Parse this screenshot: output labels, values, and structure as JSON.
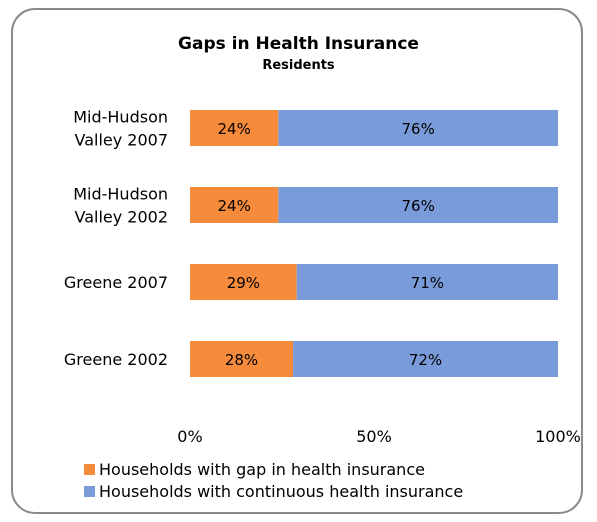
{
  "chart_data": {
    "type": "bar",
    "orientation": "horizontal",
    "stacked": true,
    "title": "Gaps in Health Insurance",
    "subtitle": "Residents",
    "categories": [
      [
        "Mid-Hudson",
        "Valley 2007"
      ],
      [
        "Mid-Hudson",
        "Valley 2002"
      ],
      [
        "Greene 2007"
      ],
      [
        "Greene 2002"
      ]
    ],
    "series": [
      {
        "name": "Households with gap in health insurance",
        "color": "#f68b3c",
        "values": [
          24,
          24,
          29,
          28
        ]
      },
      {
        "name": "Households with continuous health insurance",
        "color": "#7a9bd9",
        "values": [
          76,
          76,
          71,
          72
        ]
      }
    ],
    "data_label_suffix": "%",
    "xlim": [
      0,
      100
    ],
    "x_ticks": [
      0,
      50,
      100
    ],
    "x_tick_labels": [
      "0%",
      "50%",
      "100%"
    ],
    "grid": false,
    "legend_position": "bottom"
  }
}
